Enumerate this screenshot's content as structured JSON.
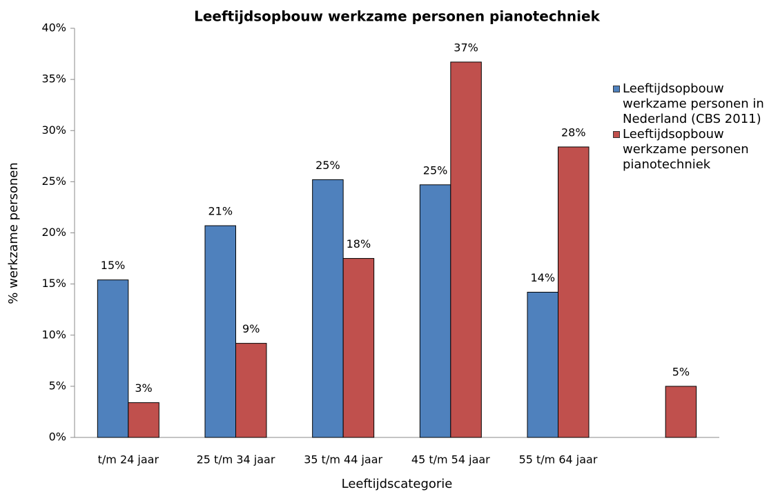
{
  "chart_data": {
    "type": "bar",
    "title": "Leeftijdsopbouw werkzame personen pianotechniek",
    "xlabel": "Leeftijdscategorie",
    "ylabel": "% werkzame personen",
    "categories": [
      "t/m 24 jaar",
      "25 t/m 34 jaar",
      "35 t/m 44 jaar",
      "45 t/m 54 jaar",
      "55 t/m 64 jaar",
      null
    ],
    "series": [
      {
        "name": "Leeftijdsopbouw werkzame personen in Nederland (CBS 2011)",
        "color": "#4f81bd",
        "values": [
          15.4,
          20.7,
          25.2,
          24.7,
          14.2,
          null
        ],
        "value_labels": [
          "15%",
          "21%",
          "25%",
          "25%",
          "14%",
          null
        ]
      },
      {
        "name": "Leeftijdsopbouw werkzame personen pianotechniek",
        "color": "#c0504d",
        "values": [
          3.4,
          9.2,
          17.5,
          36.7,
          28.4,
          5.0
        ],
        "value_labels": [
          "3%",
          "9%",
          "18%",
          "37%",
          "28%",
          "5%"
        ]
      }
    ],
    "ylim": [
      0,
      40
    ],
    "yticks": [
      {
        "value": 0,
        "label": "0%"
      },
      {
        "value": 5,
        "label": "5%"
      },
      {
        "value": 10,
        "label": "10%"
      },
      {
        "value": 15,
        "label": "15%"
      },
      {
        "value": 20,
        "label": "20%"
      },
      {
        "value": 25,
        "label": "25%"
      },
      {
        "value": 30,
        "label": "30%"
      },
      {
        "value": 35,
        "label": "35%"
      },
      {
        "value": 40,
        "label": "40%"
      }
    ],
    "grid": false,
    "legend": "right"
  }
}
